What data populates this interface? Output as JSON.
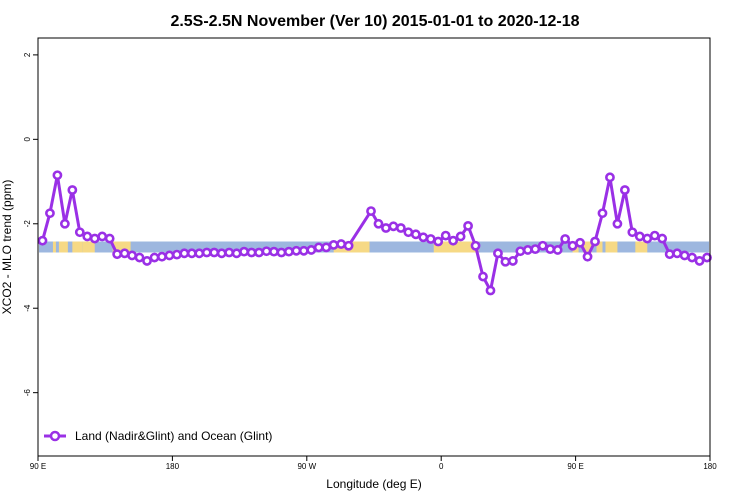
{
  "colors": {
    "series": "#9a30e6",
    "ocean": "#9db7df",
    "land": "#f6d985",
    "frame": "#000000"
  },
  "chart_data": {
    "type": "line",
    "title": "2.5S-2.5N November (Ver 10)   2015-01-01 to 2020-12-18",
    "xlabel": "Longitude (deg E)",
    "ylabel": "XCO2 - MLO trend (ppm)",
    "xlim": [
      90,
      540
    ],
    "ylim": [
      -7.5,
      2.4
    ],
    "x_ticks": [
      {
        "value": 90,
        "label": "90 E"
      },
      {
        "value": 180,
        "label": "180"
      },
      {
        "value": 270,
        "label": "90 W"
      },
      {
        "value": 360,
        "label": "0"
      },
      {
        "value": 450,
        "label": "90 E"
      },
      {
        "value": 540,
        "label": "180"
      }
    ],
    "y_ticks": [
      {
        "value": 2,
        "label": "2"
      },
      {
        "value": 0,
        "label": "0"
      },
      {
        "value": -2,
        "label": "-2"
      },
      {
        "value": -4,
        "label": "-4"
      },
      {
        "value": -6,
        "label": "-6"
      }
    ],
    "grid": false,
    "legend": {
      "position": "bottom-left",
      "entries": [
        "Land (Nadir&Glint) and Ocean (Glint)"
      ]
    },
    "band": {
      "y_min": -2.68,
      "y_max": -2.42
    },
    "land_segments": [
      [
        100,
        102
      ],
      [
        104,
        110
      ],
      [
        113,
        120
      ],
      [
        120,
        128
      ],
      [
        140,
        152
      ],
      [
        288,
        312
      ],
      [
        355,
        385
      ],
      [
        448,
        452
      ],
      [
        455,
        461
      ],
      [
        464,
        468
      ],
      [
        470,
        478
      ],
      [
        490,
        498
      ]
    ],
    "series": [
      {
        "name": "Land (Nadir&Glint) and Ocean (Glint)",
        "x": [
          93,
          98,
          103,
          108,
          113,
          118,
          123,
          128,
          133,
          138,
          143,
          148,
          153,
          158,
          163,
          168,
          173,
          178,
          183,
          188,
          193,
          198,
          203,
          208,
          213,
          218,
          223,
          228,
          233,
          238,
          243,
          248,
          253,
          258,
          263,
          268,
          273,
          278,
          283,
          288,
          293,
          298,
          313,
          318,
          323,
          328,
          333,
          338,
          343,
          348,
          353,
          358,
          363,
          368,
          373,
          378,
          383,
          388,
          393,
          398,
          403,
          408,
          413,
          418,
          423,
          428,
          433,
          438,
          443,
          448,
          453,
          458,
          463,
          468,
          473,
          478,
          483,
          488,
          493,
          498,
          503,
          508,
          513,
          518,
          523,
          528,
          533,
          538
        ],
        "y": [
          -2.4,
          -1.75,
          -0.85,
          -2.0,
          -1.2,
          -2.2,
          -2.3,
          -2.35,
          -2.3,
          -2.35,
          -2.72,
          -2.7,
          -2.75,
          -2.8,
          -2.88,
          -2.8,
          -2.78,
          -2.75,
          -2.73,
          -2.7,
          -2.7,
          -2.7,
          -2.68,
          -2.68,
          -2.7,
          -2.68,
          -2.7,
          -2.66,
          -2.68,
          -2.68,
          -2.65,
          -2.66,
          -2.68,
          -2.66,
          -2.64,
          -2.64,
          -2.62,
          -2.56,
          -2.56,
          -2.5,
          -2.48,
          -2.52,
          -1.7,
          -2.0,
          -2.1,
          -2.06,
          -2.1,
          -2.2,
          -2.25,
          -2.32,
          -2.36,
          -2.42,
          -2.28,
          -2.4,
          -2.3,
          -2.05,
          -2.52,
          -3.25,
          -3.58,
          -2.7,
          -2.9,
          -2.88,
          -2.65,
          -2.62,
          -2.6,
          -2.52,
          -2.6,
          -2.62,
          -2.36,
          -2.52,
          -2.45,
          -2.78,
          -2.42,
          -1.75,
          -0.9,
          -2.0,
          -1.2,
          -2.2,
          -2.3,
          -2.35,
          -2.28,
          -2.35,
          -2.72,
          -2.7,
          -2.75,
          -2.8,
          -2.88,
          -2.8
        ]
      }
    ]
  }
}
